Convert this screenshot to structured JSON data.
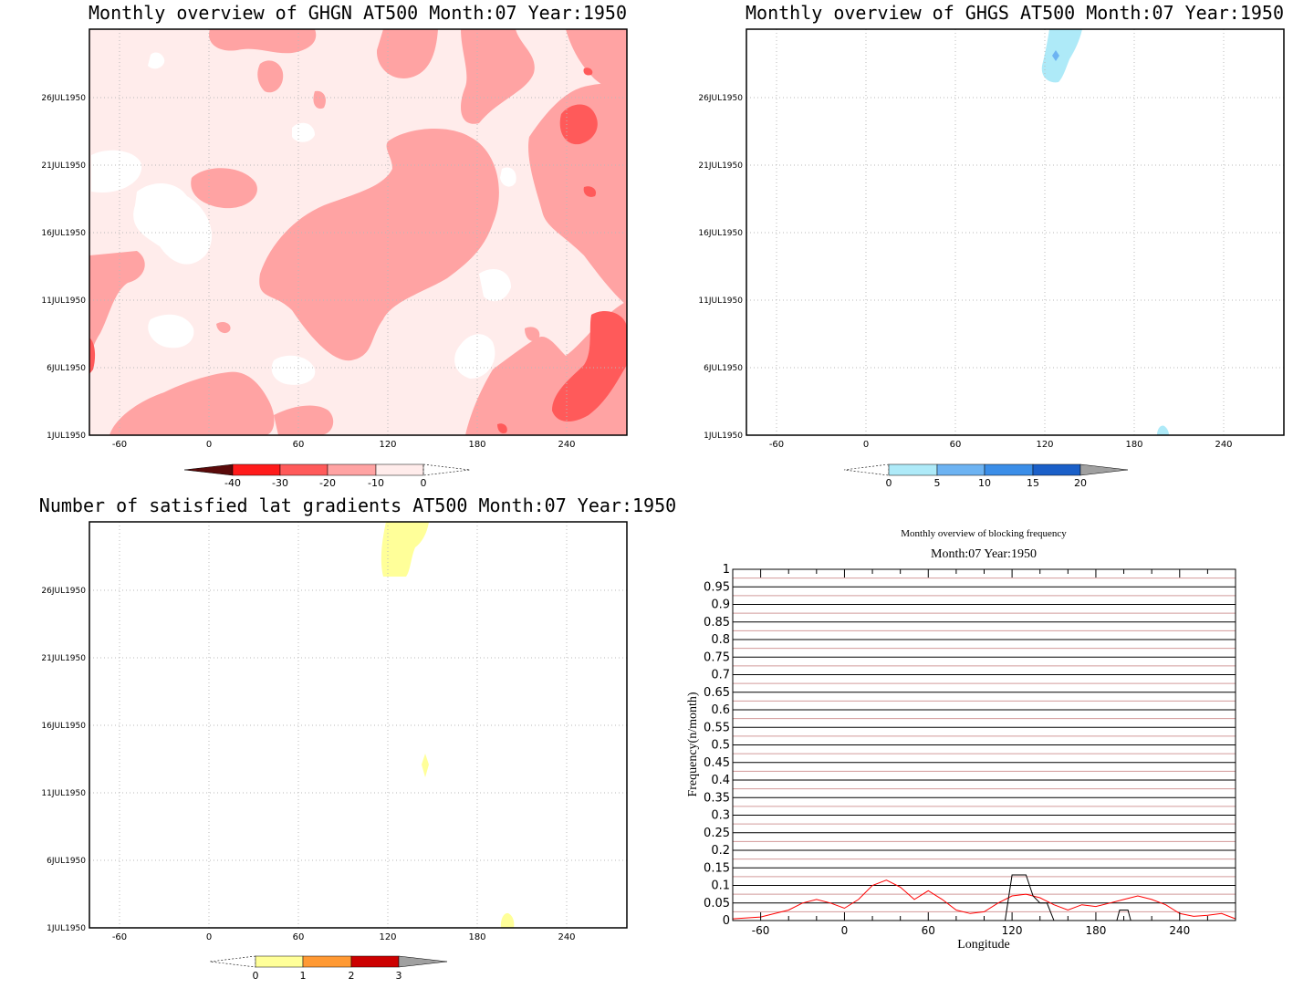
{
  "panels": {
    "ghgn": {
      "title": "Monthly overview of GHGN AT500 Month:07 Year:1950",
      "y_ticks": [
        "26JUL1950",
        "21JUL1950",
        "16JUL1950",
        "11JUL1950",
        "6JUL1950",
        "1JUL1950"
      ],
      "x_ticks": [
        "-60",
        "0",
        "60",
        "120",
        "180",
        "240"
      ],
      "colorbar_labels": [
        "-40",
        "-30",
        "-20",
        "-10",
        "0"
      ],
      "colors": {
        "c1": "#ffeceb",
        "c2": "#ffa3a3",
        "c3": "#ff5a5a",
        "c4": "#ff1a1a",
        "c5": "#5a0a0a"
      }
    },
    "ghgs": {
      "title": "Monthly overview of GHGS AT500 Month:07 Year:1950",
      "y_ticks": [
        "26JUL1950",
        "21JUL1950",
        "16JUL1950",
        "11JUL1950",
        "6JUL1950",
        "1JUL1950"
      ],
      "x_ticks": [
        "-60",
        "0",
        "60",
        "120",
        "180",
        "240"
      ],
      "colorbar_labels": [
        "0",
        "5",
        "10",
        "15",
        "20"
      ],
      "colors": {
        "c1": "#aeeaf8",
        "c2": "#6db3f2",
        "c3": "#3b8ee8",
        "c4": "#1a5fc8",
        "over": "#a0a0a0"
      }
    },
    "lat": {
      "title": "Number of satisfied lat gradients AT500 Month:07 Year:1950",
      "y_ticks": [
        "26JUL1950",
        "21JUL1950",
        "16JUL1950",
        "11JUL1950",
        "6JUL1950",
        "1JUL1950"
      ],
      "x_ticks": [
        "-60",
        "0",
        "60",
        "120",
        "180",
        "240"
      ],
      "colorbar_labels": [
        "0",
        "1",
        "2",
        "3"
      ],
      "colors": {
        "c1": "#ffff99",
        "c2": "#ff9933",
        "c3": "#cc0000",
        "over": "#a0a0a0"
      }
    },
    "freq": {
      "title": "Monthly overview of blocking frequency",
      "subtitle": "Month:07 Year:1950",
      "ylabel": "Frequency(n/month)",
      "xlabel": "Longitude",
      "y_ticks": [
        "1",
        "0.95",
        "0.9",
        "0.85",
        "0.8",
        "0.75",
        "0.7",
        "0.65",
        "0.6",
        "0.55",
        "0.5",
        "0.45",
        "0.4",
        "0.35",
        "0.3",
        "0.25",
        "0.2",
        "0.15",
        "0.1",
        "0.05",
        "0"
      ],
      "x_ticks": [
        "-60",
        "0",
        "60",
        "120",
        "180",
        "240"
      ]
    }
  },
  "chart_data": [
    {
      "type": "heatmap",
      "title": "Monthly overview of GHGN AT500 Month:07 Year:1950",
      "x_range": [
        -90,
        270
      ],
      "y_range": [
        "1JUL1950",
        "31JUL1950"
      ],
      "levels": [
        -40,
        -30,
        -20,
        -10,
        0
      ]
    },
    {
      "type": "heatmap",
      "title": "Monthly overview of GHGS AT500 Month:07 Year:1950",
      "x_range": [
        -90,
        270
      ],
      "y_range": [
        "1JUL1950",
        "31JUL1950"
      ],
      "levels": [
        0,
        5,
        10,
        15,
        20
      ]
    },
    {
      "type": "heatmap",
      "title": "Number of satisfied lat gradients AT500 Month:07 Year:1950",
      "x_range": [
        -90,
        270
      ],
      "y_range": [
        "1JUL1950",
        "31JUL1950"
      ],
      "levels": [
        0,
        1,
        2,
        3
      ]
    },
    {
      "type": "line",
      "title": "Monthly overview of blocking frequency",
      "subtitle": "Month:07 Year:1950",
      "xlabel": "Longitude",
      "ylabel": "Frequency(n/month)",
      "xlim": [
        -80,
        280
      ],
      "ylim": [
        0,
        1
      ],
      "series": [
        {
          "color": "#ff0000",
          "x": [
            -80,
            -60,
            -40,
            -30,
            -20,
            -10,
            0,
            10,
            20,
            30,
            40,
            50,
            60,
            70,
            80,
            90,
            100,
            110,
            120,
            130,
            140,
            150,
            160,
            170,
            180,
            190,
            200,
            210,
            220,
            230,
            240,
            250,
            260,
            270,
            280
          ],
          "y": [
            0.005,
            0.01,
            0.03,
            0.05,
            0.06,
            0.05,
            0.035,
            0.06,
            0.1,
            0.115,
            0.095,
            0.06,
            0.085,
            0.06,
            0.03,
            0.02,
            0.025,
            0.05,
            0.07,
            0.075,
            0.065,
            0.045,
            0.03,
            0.045,
            0.04,
            0.05,
            0.06,
            0.07,
            0.06,
            0.045,
            0.02,
            0.012,
            0.015,
            0.02,
            0.005
          ]
        },
        {
          "color": "#000000",
          "x": [
            115,
            120,
            125,
            130,
            135,
            140,
            145,
            150
          ],
          "y": [
            0,
            0.13,
            0.13,
            0.13,
            0.07,
            0.05,
            0.05,
            0
          ]
        },
        {
          "color": "#000000",
          "x": [
            195,
            197,
            203,
            205
          ],
          "y": [
            0,
            0.03,
            0.03,
            0
          ]
        }
      ]
    }
  ]
}
